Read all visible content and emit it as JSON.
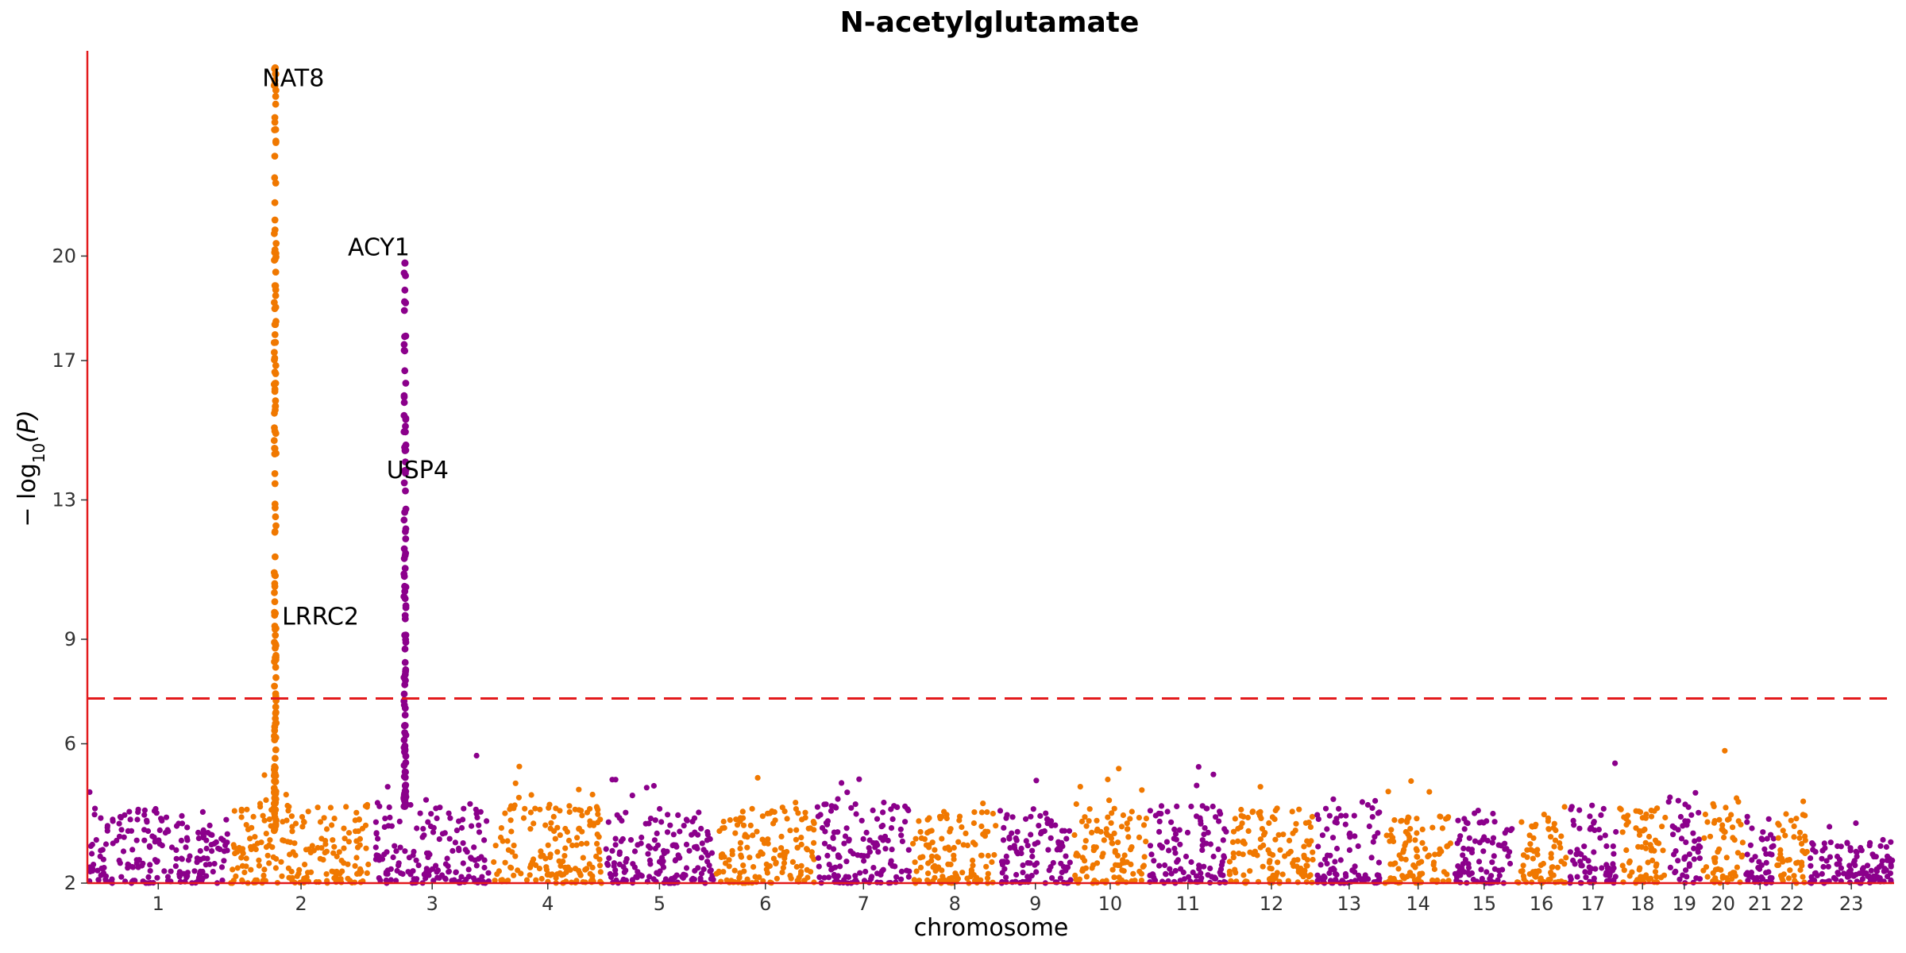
{
  "chart_data": {
    "type": "scatter",
    "title": "N-acetylglutamate",
    "xlabel": "chromosome",
    "ylabel_main": "− log",
    "ylabel_sub": "10",
    "ylabel_arg": "(P)",
    "ylim": [
      2,
      25.8
    ],
    "yticks": [
      2,
      6,
      9,
      13,
      17,
      20
    ],
    "significance_threshold": 7.3,
    "colors": {
      "odd": "#8b008b",
      "even": "#f07800",
      "axis": "#e31a1c",
      "threshold": "#e31a1c"
    },
    "chromosomes": [
      {
        "label": "1",
        "start": 0.0,
        "end": 3.65,
        "base": 3.0,
        "spread": 0.9,
        "peaks": []
      },
      {
        "label": "2",
        "start": 3.65,
        "end": 7.35,
        "base": 3.1,
        "spread": 1.0,
        "peaks": [
          {
            "pos": 0.32,
            "max": 25.4,
            "min": 3.5
          }
        ]
      },
      {
        "label": "3",
        "start": 7.35,
        "end": 10.4,
        "base": 3.1,
        "spread": 1.0,
        "peaks": [
          {
            "pos": 0.27,
            "max": 19.8,
            "min": 4.2
          }
        ]
      },
      {
        "label": "4",
        "start": 10.4,
        "end": 13.3,
        "base": 3.1,
        "spread": 0.9,
        "peaks": []
      },
      {
        "label": "5",
        "start": 13.3,
        "end": 16.15,
        "base": 3.0,
        "spread": 0.8,
        "peaks": []
      },
      {
        "label": "6",
        "start": 16.15,
        "end": 18.75,
        "base": 3.1,
        "spread": 0.8,
        "peaks": []
      },
      {
        "label": "7",
        "start": 18.75,
        "end": 21.2,
        "base": 3.2,
        "spread": 0.9,
        "peaks": []
      },
      {
        "label": "8",
        "start": 21.2,
        "end": 23.45,
        "base": 3.0,
        "spread": 0.8,
        "peaks": []
      },
      {
        "label": "9",
        "start": 23.45,
        "end": 25.35,
        "base": 3.0,
        "spread": 0.9,
        "peaks": []
      },
      {
        "label": "10",
        "start": 25.35,
        "end": 27.3,
        "base": 3.1,
        "spread": 0.9,
        "peaks": []
      },
      {
        "label": "11",
        "start": 27.3,
        "end": 29.35,
        "base": 3.1,
        "spread": 0.9,
        "peaks": []
      },
      {
        "label": "12",
        "start": 29.35,
        "end": 31.6,
        "base": 3.0,
        "spread": 0.9,
        "peaks": []
      },
      {
        "label": "13",
        "start": 31.6,
        "end": 33.35,
        "base": 3.0,
        "spread": 0.9,
        "peaks": []
      },
      {
        "label": "14",
        "start": 33.35,
        "end": 35.15,
        "base": 2.9,
        "spread": 0.8,
        "peaks": []
      },
      {
        "label": "15",
        "start": 35.15,
        "end": 36.75,
        "base": 3.0,
        "spread": 0.8,
        "peaks": []
      },
      {
        "label": "16",
        "start": 36.75,
        "end": 38.1,
        "base": 3.2,
        "spread": 0.8,
        "peaks": []
      },
      {
        "label": "17",
        "start": 38.1,
        "end": 39.4,
        "base": 3.1,
        "spread": 0.9,
        "peaks": []
      },
      {
        "label": "18",
        "start": 39.4,
        "end": 40.65,
        "base": 3.1,
        "spread": 0.9,
        "peaks": []
      },
      {
        "label": "19",
        "start": 40.65,
        "end": 41.55,
        "base": 3.3,
        "spread": 1.0,
        "peaks": []
      },
      {
        "label": "20",
        "start": 41.55,
        "end": 42.65,
        "base": 3.2,
        "spread": 1.0,
        "peaks": []
      },
      {
        "label": "21",
        "start": 42.65,
        "end": 43.45,
        "base": 3.0,
        "spread": 0.7,
        "peaks": []
      },
      {
        "label": "22",
        "start": 43.45,
        "end": 44.3,
        "base": 3.0,
        "spread": 0.8,
        "peaks": []
      },
      {
        "label": "23",
        "start": 44.3,
        "end": 46.5,
        "base": 2.4,
        "spread": 0.6,
        "peaks": []
      }
    ],
    "xlim": [
      0,
      46.5
    ],
    "annotations": [
      {
        "gene": "NAT8",
        "x": 5.3,
        "y": 25.1
      },
      {
        "gene": "ACY1",
        "x": 7.5,
        "y": 20.25
      },
      {
        "gene": "USP4",
        "x": 8.5,
        "y": 13.85
      },
      {
        "gene": "LRRC2",
        "x": 6.0,
        "y": 9.65
      }
    ]
  }
}
